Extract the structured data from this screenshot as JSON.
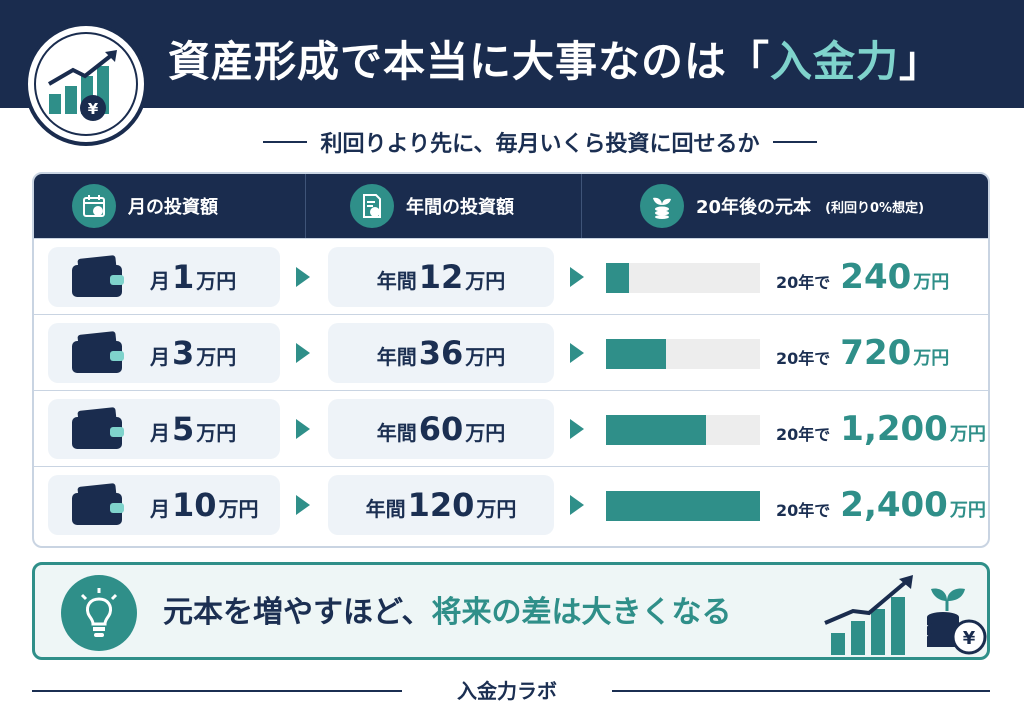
{
  "header": {
    "title_main": "資産形成で本当に大事なのは「",
    "title_accent": "入金力",
    "title_end": "」",
    "subtitle": "利回りより先に、毎月いくら投資に回せるか"
  },
  "table": {
    "col_monthly": "月の投資額",
    "col_annual": "年間の投資額",
    "col_result": "20年後の元本",
    "col_result_note": "(利回り0%想定)",
    "rows": [
      {
        "month_prefix": "月",
        "month_num": "1",
        "month_unit": "万円",
        "annual_prefix": "年間",
        "annual_num": "12",
        "annual_unit": "万円",
        "fill_fraction": 0.15,
        "result_prefix": "20年で",
        "result_num": "240",
        "result_unit": "万円"
      },
      {
        "month_prefix": "月",
        "month_num": "3",
        "month_unit": "万円",
        "annual_prefix": "年間",
        "annual_num": "36",
        "annual_unit": "万円",
        "fill_fraction": 0.39,
        "result_prefix": "20年で",
        "result_num": "720",
        "result_unit": "万円"
      },
      {
        "month_prefix": "月",
        "month_num": "5",
        "month_unit": "万円",
        "annual_prefix": "年間",
        "annual_num": "60",
        "annual_unit": "万円",
        "fill_fraction": 0.65,
        "result_prefix": "20年で",
        "result_num": "1,200",
        "result_unit": "万円"
      },
      {
        "month_prefix": "月",
        "month_num": "10",
        "month_unit": "万円",
        "annual_prefix": "年間",
        "annual_num": "120",
        "annual_unit": "万円",
        "fill_fraction": 1.0,
        "result_prefix": "20年で",
        "result_num": "2,400",
        "result_unit": "万円"
      }
    ]
  },
  "callout": {
    "text_main": "元本を増やすほど、",
    "text_accent": "将来の差は大きくなる"
  },
  "footer": {
    "label": "入金力ラボ"
  },
  "colors": {
    "navy": "#1a2c4e",
    "teal": "#2f8f89",
    "light_teal": "#7fd3cc",
    "pill_bg": "#eef3f8",
    "bar_track": "#ededed"
  },
  "icons": {
    "emblem": "growth-chart-yen-icon",
    "monthly": "calendar-yen-icon",
    "annual": "document-yen-icon",
    "result": "sprout-coins-icon",
    "row": "wallet-icon",
    "callout": "lightbulb-icon",
    "callout_graphic": "growth-bars-coins-icon"
  }
}
